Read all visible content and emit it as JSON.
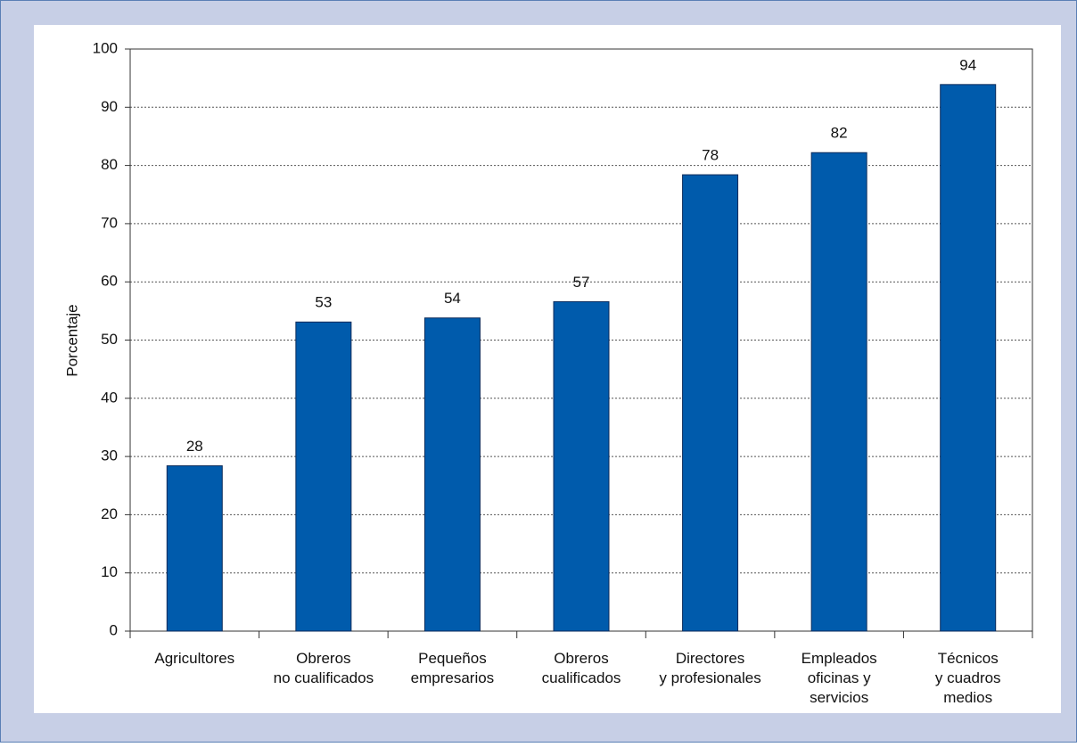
{
  "chart_data": {
    "type": "bar",
    "y_label": "Porcentaje",
    "categories": [
      [
        "Agricultores"
      ],
      [
        "Obreros",
        "no cualificados"
      ],
      [
        "Pequeños",
        "empresarios"
      ],
      [
        "Obreros",
        "cualificados"
      ],
      [
        "Directores",
        "y profesionales"
      ],
      [
        "Empleados",
        "oficinas y",
        "servicios"
      ],
      [
        "Técnicos",
        "y cuadros",
        "medios"
      ]
    ],
    "values": [
      28.4,
      53.1,
      53.8,
      56.6,
      78.4,
      82.2,
      93.9
    ],
    "value_labels": [
      "28",
      "53",
      "54",
      "57",
      "78",
      "82",
      "94"
    ],
    "color": "#005bac",
    "ylim": [
      0,
      100
    ],
    "yticks": [
      0,
      10,
      20,
      30,
      40,
      50,
      60,
      70,
      80,
      90,
      100
    ],
    "grid": true
  }
}
